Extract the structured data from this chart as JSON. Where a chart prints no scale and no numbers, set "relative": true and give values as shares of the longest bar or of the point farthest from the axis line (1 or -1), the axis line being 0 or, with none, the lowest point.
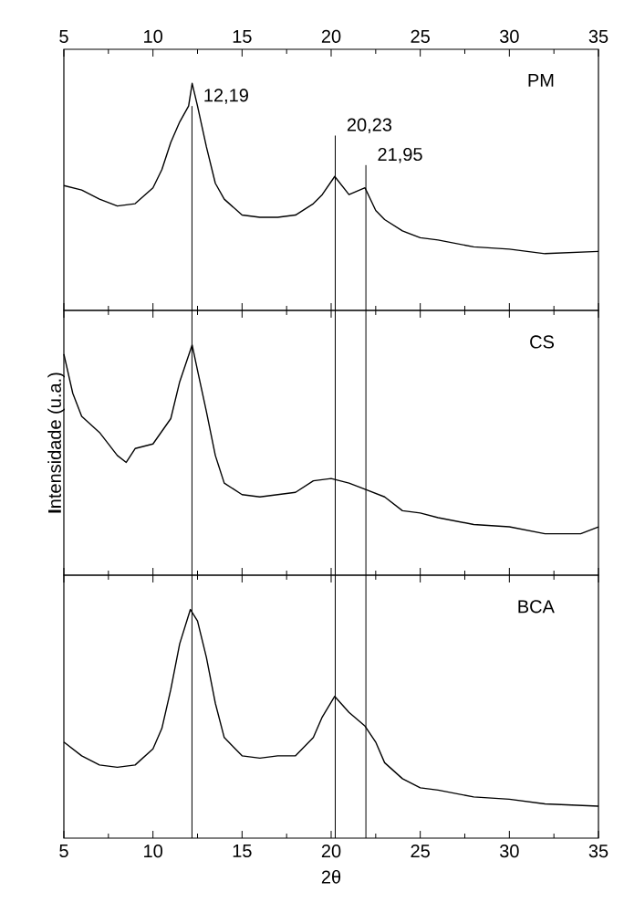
{
  "chart_data": [
    {
      "type": "line",
      "title": "PM",
      "relative": true,
      "xlim": [
        5,
        35
      ],
      "xticks": [
        5,
        10,
        15,
        20,
        25,
        30,
        35
      ],
      "tick_labels": "x",
      "series": [
        {
          "color": "#000000",
          "x": [
            5,
            6,
            7,
            8,
            9,
            10,
            10.5,
            11,
            11.5,
            12,
            12.2,
            12.5,
            13,
            13.5,
            14,
            15,
            16,
            17,
            18,
            19,
            19.5,
            20.2,
            21,
            21.9,
            22.5,
            23,
            24,
            25,
            26,
            28,
            30,
            32,
            35
          ],
          "values": [
            0.55,
            0.53,
            0.49,
            0.46,
            0.47,
            0.54,
            0.62,
            0.74,
            0.83,
            0.9,
            1,
            0.9,
            0.72,
            0.56,
            0.49,
            0.42,
            0.41,
            0.41,
            0.42,
            0.47,
            0.51,
            0.59,
            0.51,
            0.54,
            0.44,
            0.4,
            0.35,
            0.32,
            0.31,
            0.28,
            0.27,
            0.25,
            0.26
          ]
        }
      ],
      "ref_lines": [
        {
          "axis": "x",
          "value": 12.19,
          "label": "12,19"
        },
        {
          "axis": "x",
          "value": 20.23,
          "label": "20,23"
        },
        {
          "axis": "x",
          "value": 21.95,
          "label": "21,95"
        }
      ]
    },
    {
      "type": "line",
      "title": "CS",
      "relative": true,
      "ylabel": "**I**ntensidade (u.a.)",
      "xlim": [
        5,
        35
      ],
      "xticks": [
        5,
        10,
        15,
        20,
        25,
        30,
        35
      ],
      "tick_labels": false,
      "series": [
        {
          "color": "#000000",
          "x": [
            5,
            5.5,
            6,
            7,
            8,
            8.5,
            9,
            10,
            11,
            11.5,
            12.2,
            12.5,
            13,
            13.5,
            14,
            15,
            16,
            17,
            18,
            19,
            20,
            21,
            22,
            23,
            24,
            25,
            26,
            28,
            30,
            32,
            34,
            35
          ],
          "values": [
            0.96,
            0.79,
            0.69,
            0.62,
            0.52,
            0.49,
            0.55,
            0.57,
            0.68,
            0.84,
            1,
            0.89,
            0.71,
            0.52,
            0.4,
            0.35,
            0.34,
            0.35,
            0.36,
            0.41,
            0.42,
            0.4,
            0.37,
            0.34,
            0.28,
            0.27,
            0.25,
            0.22,
            0.21,
            0.18,
            0.18,
            0.21
          ]
        }
      ],
      "ref_lines": [
        {
          "axis": "x",
          "value": 12.19
        },
        {
          "axis": "x",
          "value": 20.23
        },
        {
          "axis": "x",
          "value": 21.95
        }
      ]
    },
    {
      "type": "line",
      "title": "BCA",
      "relative": true,
      "xlabel": "2θ",
      "xlim": [
        5,
        35
      ],
      "xticks": [
        5,
        10,
        15,
        20,
        25,
        30,
        35
      ],
      "tick_labels": "x",
      "series": [
        {
          "color": "#000000",
          "x": [
            5,
            6,
            7,
            8,
            9,
            10,
            10.5,
            11,
            11.5,
            12.1,
            12.5,
            13,
            13.5,
            14,
            15,
            16,
            17,
            18,
            19,
            19.5,
            20.2,
            21,
            21.9,
            22.5,
            23,
            24,
            25,
            26,
            28,
            30,
            32,
            35
          ],
          "values": [
            0.42,
            0.36,
            0.32,
            0.31,
            0.32,
            0.39,
            0.48,
            0.65,
            0.85,
            1,
            0.95,
            0.79,
            0.59,
            0.44,
            0.36,
            0.35,
            0.36,
            0.36,
            0.44,
            0.53,
            0.62,
            0.55,
            0.49,
            0.42,
            0.33,
            0.26,
            0.22,
            0.21,
            0.18,
            0.17,
            0.15,
            0.14
          ]
        }
      ],
      "ref_lines": [
        {
          "axis": "x",
          "value": 12.19
        },
        {
          "axis": "x",
          "value": 20.23
        },
        {
          "axis": "x",
          "value": 21.95
        }
      ]
    }
  ]
}
